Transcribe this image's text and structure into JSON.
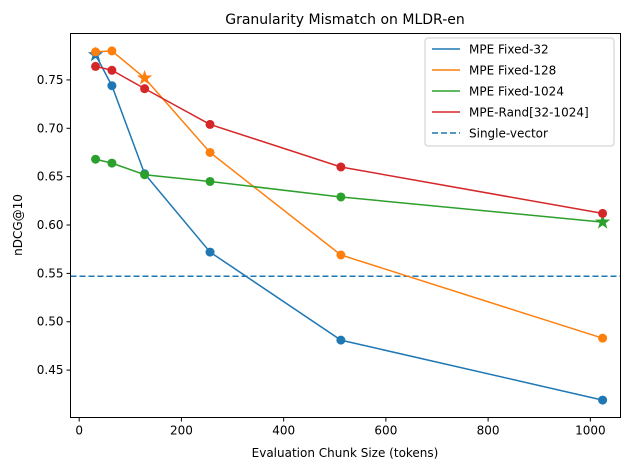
{
  "chart_data": {
    "type": "line",
    "title": "Granularity Mismatch on MLDR-en",
    "xlabel": "Evaluation Chunk Size (tokens)",
    "ylabel": "nDCG@10",
    "xlim": [
      -17,
      1059
    ],
    "ylim": [
      0.401,
      0.798
    ],
    "xticks": [
      0,
      200,
      400,
      600,
      800,
      1000
    ],
    "yticks": [
      0.45,
      0.5,
      0.55,
      0.6,
      0.65,
      0.7,
      0.75
    ],
    "ytick_labels": [
      "0.45",
      "0.50",
      "0.55",
      "0.60",
      "0.65",
      "0.70",
      "0.75"
    ],
    "grid": false,
    "legend_position": "top-right",
    "x": [
      32,
      64,
      128,
      256,
      512,
      1024
    ],
    "series": [
      {
        "name": "MPE Fixed-32",
        "color": "#1f77b4",
        "values": [
          0.776,
          0.744,
          0.653,
          0.572,
          0.481,
          0.419
        ],
        "star_index": 0
      },
      {
        "name": "MPE Fixed-128",
        "color": "#ff7f0e",
        "values": [
          0.779,
          0.78,
          0.752,
          0.675,
          0.569,
          0.483
        ],
        "star_index": 2
      },
      {
        "name": "MPE Fixed-1024",
        "color": "#2ca02c",
        "values": [
          0.668,
          0.664,
          0.652,
          0.645,
          0.629,
          0.603
        ],
        "star_index": 5
      },
      {
        "name": "MPE-Rand[32-1024]",
        "color": "#d62728",
        "values": [
          0.764,
          0.76,
          0.741,
          0.704,
          0.66,
          0.612
        ],
        "star_index": null
      }
    ],
    "reference_line": {
      "name": "Single-vector",
      "color": "#1f77b4",
      "value": 0.547,
      "style": "dashed"
    }
  }
}
